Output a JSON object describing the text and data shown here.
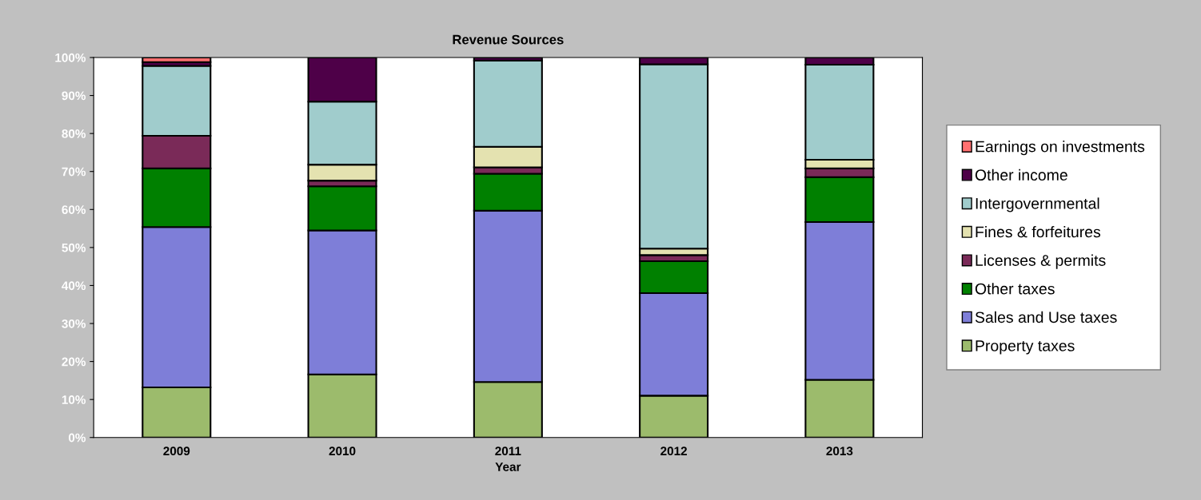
{
  "chart_data": {
    "type": "bar",
    "title": "Revenue Sources",
    "xlabel": "Year",
    "stacked": true,
    "legend": "right",
    "grid": false,
    "categories": [
      "2009",
      "2010",
      "2011",
      "2012",
      "2013"
    ],
    "ylim": [
      0,
      100
    ],
    "yticks": [
      {
        "value": 0,
        "label": "0%"
      },
      {
        "value": 10,
        "label": "10%"
      },
      {
        "value": 20,
        "label": "20%"
      },
      {
        "value": 30,
        "label": "30%"
      },
      {
        "value": 40,
        "label": "40%"
      },
      {
        "value": 50,
        "label": "50%"
      },
      {
        "value": 60,
        "label": "60%"
      },
      {
        "value": 70,
        "label": "70%"
      },
      {
        "value": 80,
        "label": "80%"
      },
      {
        "value": 90,
        "label": "90%"
      },
      {
        "value": 100,
        "label": "100%"
      }
    ],
    "series": [
      {
        "name": "Property taxes",
        "color": "#9cbb6c",
        "values": [
          13.2,
          16.6,
          14.6,
          11.0,
          15.2
        ]
      },
      {
        "name": "Sales and Use taxes",
        "color": "#7e7ed8",
        "values": [
          42.2,
          37.9,
          45.1,
          27.0,
          41.5
        ]
      },
      {
        "name": "Other taxes",
        "color": "#008000",
        "values": [
          15.4,
          11.6,
          9.7,
          8.4,
          11.8
        ]
      },
      {
        "name": "Licenses & permits",
        "color": "#7a2a58",
        "values": [
          8.6,
          1.5,
          1.7,
          1.6,
          2.3
        ]
      },
      {
        "name": "Fines & forfeitures",
        "color": "#e4e2b0",
        "values": [
          null,
          4.2,
          5.4,
          1.7,
          2.3
        ]
      },
      {
        "name": "Intergovernmental",
        "color": "#a0cccc",
        "values": [
          18.4,
          16.6,
          22.7,
          48.5,
          25.0
        ]
      },
      {
        "name": "Other income",
        "color": "#4e0048",
        "values": [
          1.0,
          11.6,
          0.8,
          1.8,
          1.9
        ]
      },
      {
        "name": "Earnings on investments",
        "color": "#ff7070",
        "values": [
          1.2,
          null,
          null,
          null,
          null
        ]
      }
    ]
  }
}
